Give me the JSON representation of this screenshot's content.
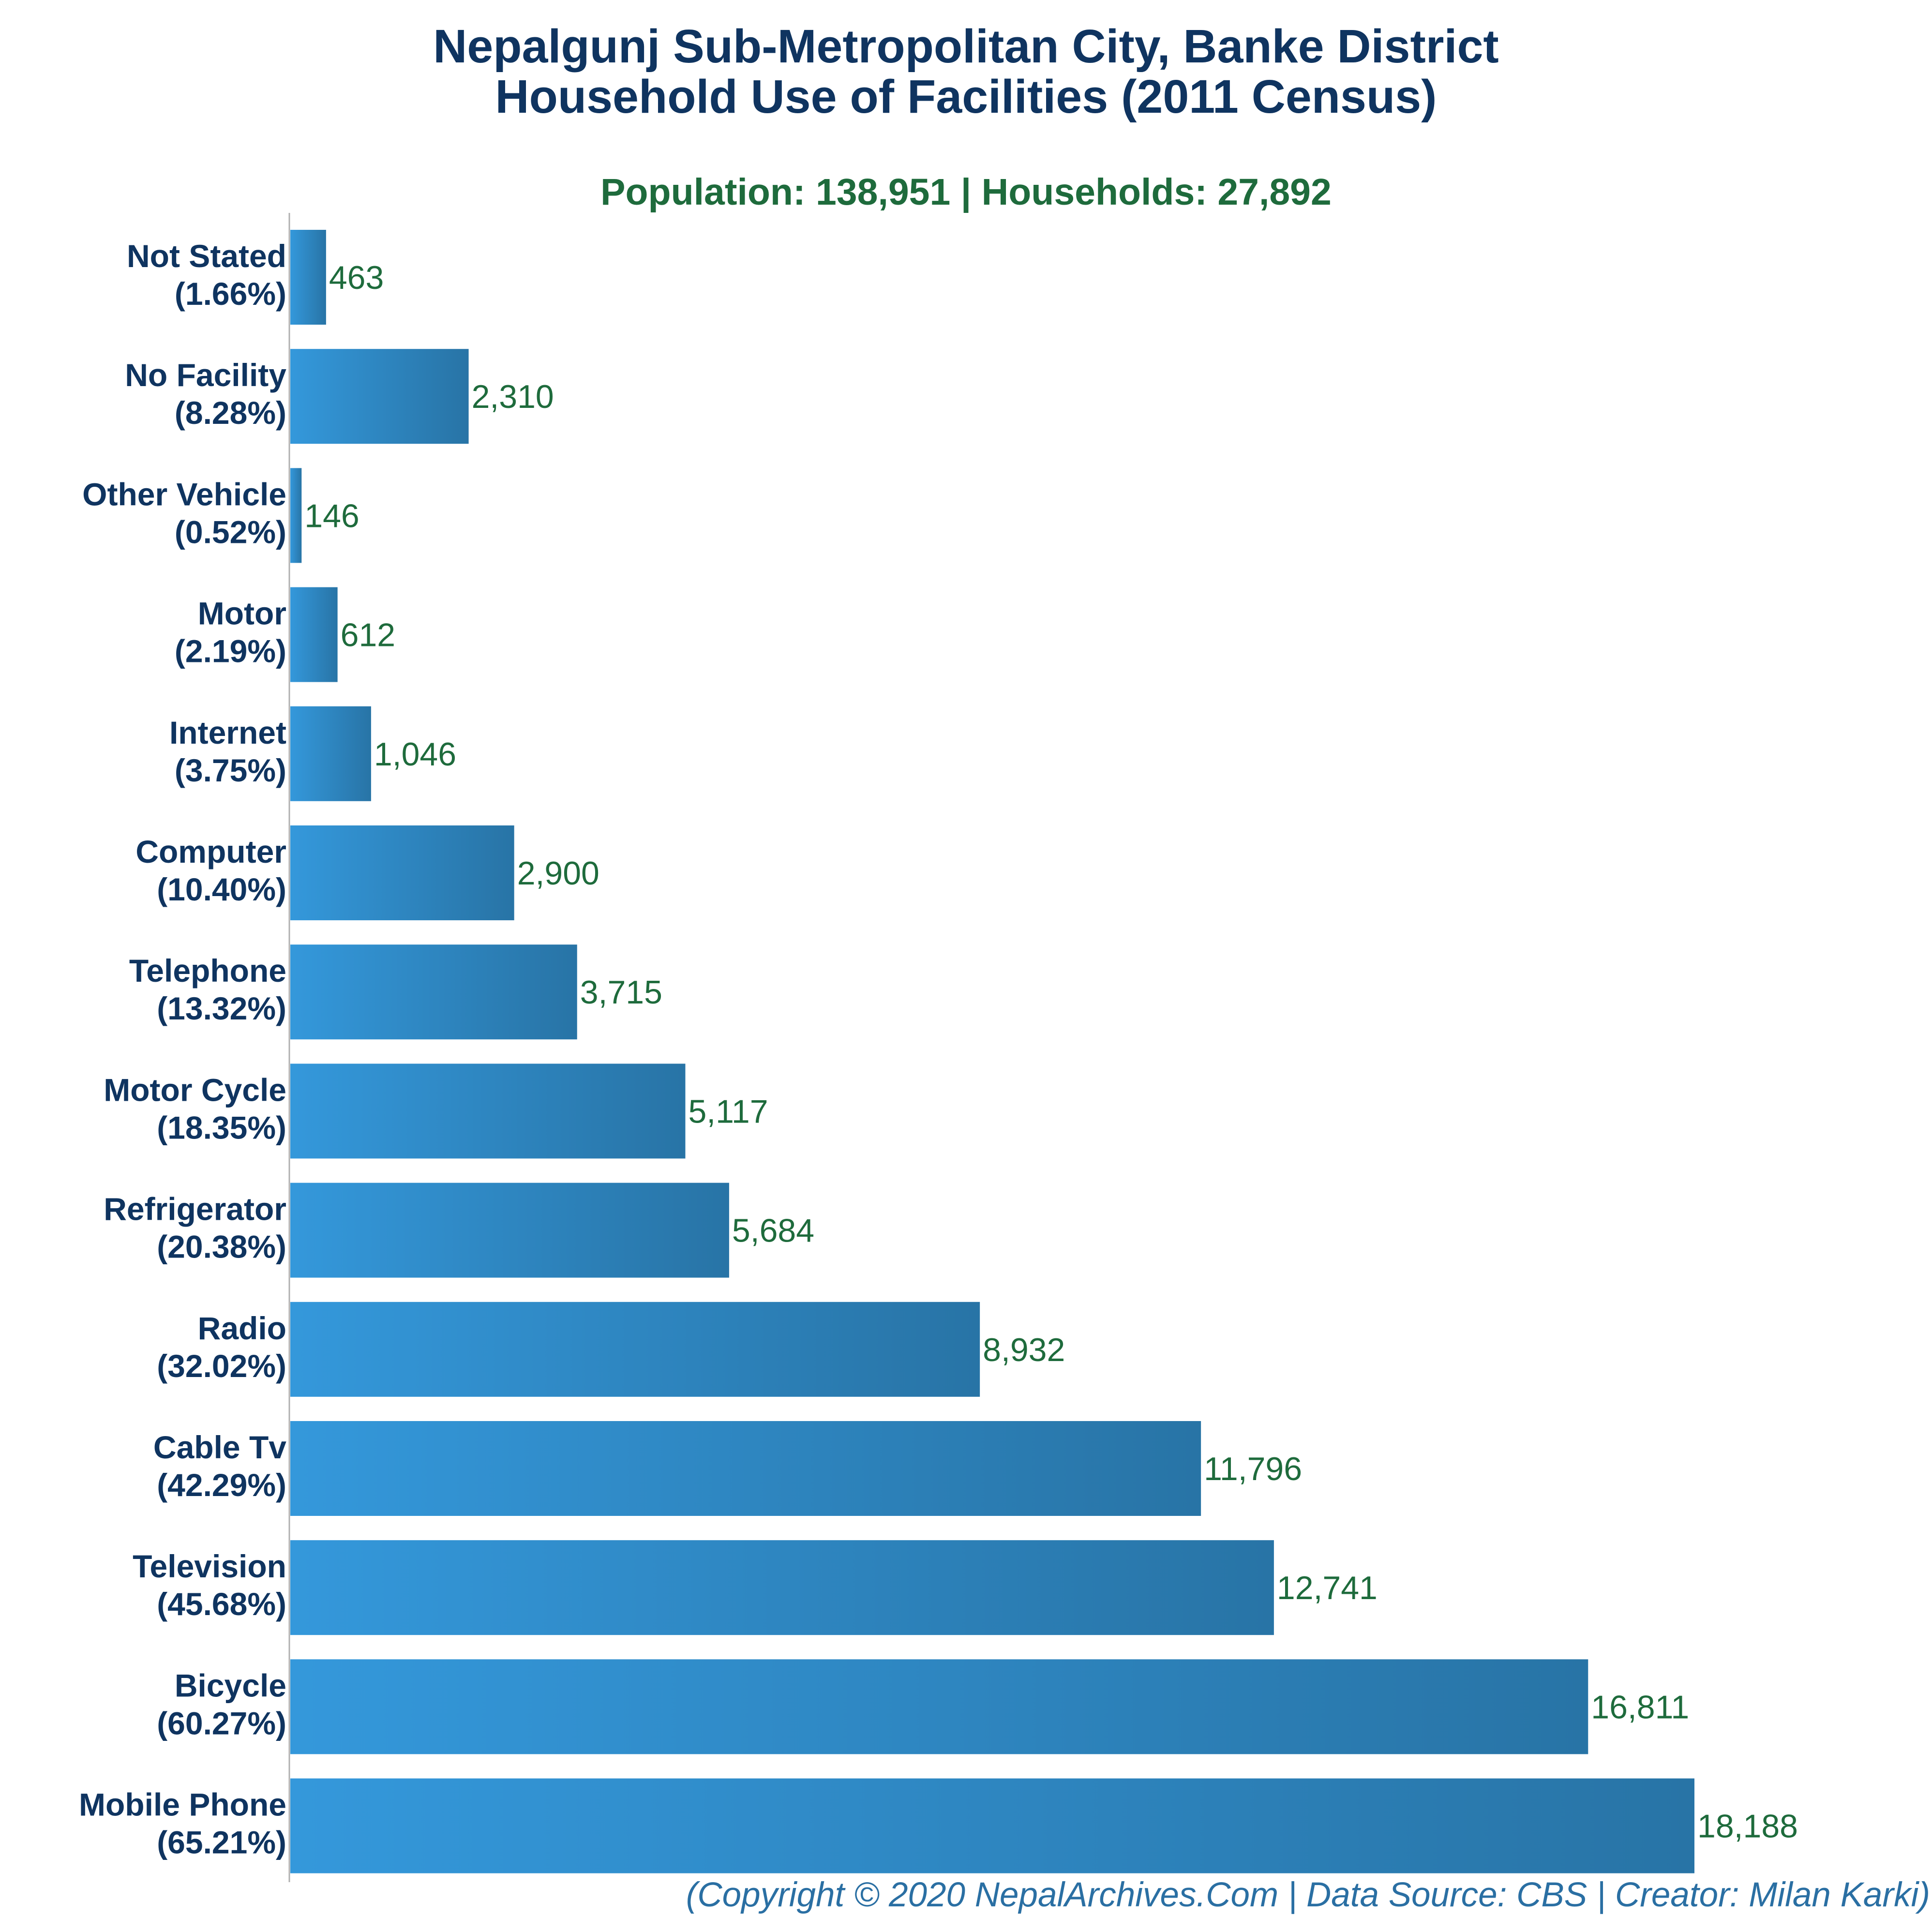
{
  "title_line1": "Nepalgunj Sub-Metropolitan City, Banke District",
  "title_line2": "Household Use of Facilities (2011 Census)",
  "subtitle": "Population: 138,951 | Households: 27,892",
  "footer": "(Copyright © 2020 NepalArchives.Com | Data Source: CBS | Creator: Milan Karki)",
  "colors": {
    "bar_start": "#3498db",
    "bar_end": "#2874a6",
    "title": "#0f3460",
    "value_label": "#1e6b3c",
    "footer": "#2a6fa3"
  },
  "chart_data": {
    "type": "bar",
    "orientation": "horizontal",
    "title": "Nepalgunj Sub-Metropolitan City, Banke District Household Use of Facilities (2011 Census)",
    "categories": [
      "Not Stated",
      "No Facility",
      "Other Vehicle",
      "Motor",
      "Internet",
      "Computer",
      "Telephone",
      "Motor Cycle",
      "Refrigerator",
      "Radio",
      "Cable Tv",
      "Television",
      "Bicycle",
      "Mobile Phone"
    ],
    "percent_labels": [
      "(1.66%)",
      "(8.28%)",
      "(0.52%)",
      "(2.19%)",
      "(3.75%)",
      "(10.40%)",
      "(13.32%)",
      "(18.35%)",
      "(20.38%)",
      "(32.02%)",
      "(42.29%)",
      "(45.68%)",
      "(60.27%)",
      "(65.21%)"
    ],
    "values": [
      463,
      2310,
      146,
      612,
      1046,
      2900,
      3715,
      5117,
      5684,
      8932,
      11796,
      12741,
      16811,
      18188
    ],
    "value_labels": [
      "463",
      "2,310",
      "146",
      "612",
      "1,046",
      "2,900",
      "3,715",
      "5,117",
      "5,684",
      "8,932",
      "11,796",
      "12,741",
      "16,811",
      "18,188"
    ],
    "xlim": [
      0,
      18188
    ],
    "xlabel": "",
    "ylabel": "",
    "grid": false,
    "legend": "none"
  }
}
